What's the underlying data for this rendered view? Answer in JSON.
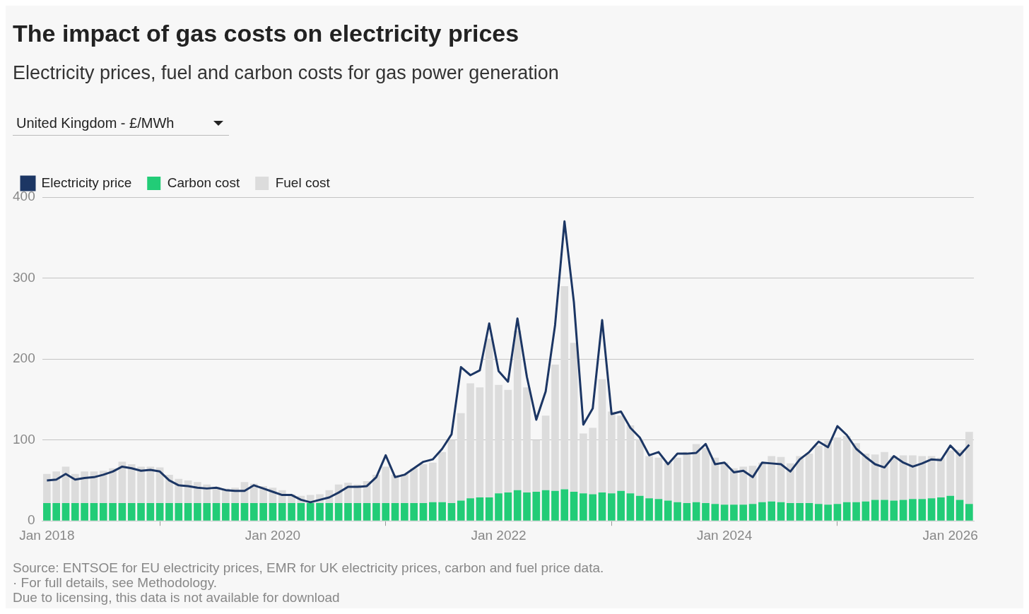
{
  "chart_data": {
    "type": "bar",
    "title": "The impact of gas costs on electricity prices",
    "subtitle": "Electricity prices, fuel and carbon costs for gas power generation",
    "annotations": [
      "United Kingdom - £/MWh",
      "Source: ENTSOE for EU electricity prices, EMR for UK electricity prices, carbon and fuel price data.",
      "· For full details, see Methodology.",
      "Due to licensing, this data is not available for download"
    ],
    "stacked": true,
    "legend": "top left",
    "grid": "y",
    "x": [
      "2018-01",
      "2018-02",
      "2018-03",
      "2018-04",
      "2018-05",
      "2018-06",
      "2018-07",
      "2018-08",
      "2018-09",
      "2018-10",
      "2018-11",
      "2018-12",
      "2019-01",
      "2019-02",
      "2019-03",
      "2019-04",
      "2019-05",
      "2019-06",
      "2019-07",
      "2019-08",
      "2019-09",
      "2019-10",
      "2019-11",
      "2019-12",
      "2020-01",
      "2020-02",
      "2020-03",
      "2020-04",
      "2020-05",
      "2020-06",
      "2020-07",
      "2020-08",
      "2020-09",
      "2020-10",
      "2020-11",
      "2020-12",
      "2021-01",
      "2021-02",
      "2021-03",
      "2021-04",
      "2021-05",
      "2021-06",
      "2021-07",
      "2021-08",
      "2021-09",
      "2021-10",
      "2021-11",
      "2021-12",
      "2022-01",
      "2022-02",
      "2022-03",
      "2022-04",
      "2022-05",
      "2022-06",
      "2022-07",
      "2022-08",
      "2022-09",
      "2022-10",
      "2022-11",
      "2022-12",
      "2023-01",
      "2023-02",
      "2023-03",
      "2023-04",
      "2023-05",
      "2023-06",
      "2023-07",
      "2023-08",
      "2023-09",
      "2023-10",
      "2023-11",
      "2023-12",
      "2024-01",
      "2024-02",
      "2024-03",
      "2024-04",
      "2024-05",
      "2024-06",
      "2024-07",
      "2024-08",
      "2024-09",
      "2024-10",
      "2024-11",
      "2024-12",
      "2025-01",
      "2025-02",
      "2025-03",
      "2025-04",
      "2025-05",
      "2025-06",
      "2025-07",
      "2025-08",
      "2025-09",
      "2025-10",
      "2025-11",
      "2025-12",
      "2026-01",
      "2026-02",
      "2026-03"
    ],
    "xlim": [
      "2017-12-16",
      "2026-03-16"
    ],
    "xticks": [
      {
        "value": "2018-01",
        "label": "Jan 2018"
      },
      {
        "value": "2020-01",
        "label": "Jan 2020"
      },
      {
        "value": "2022-01",
        "label": "Jan 2022"
      },
      {
        "value": "2024-01",
        "label": "Jan 2024"
      },
      {
        "value": "2026-01",
        "label": "Jan 2026"
      }
    ],
    "ylim": [
      0,
      400
    ],
    "yticks": [
      0,
      100,
      200,
      300,
      400
    ],
    "series": [
      {
        "name": "Electricity price",
        "type": "line",
        "color": "#1c3664",
        "values": [
          50,
          51,
          58,
          51,
          53,
          54,
          57,
          61,
          67,
          65,
          62,
          63,
          61,
          50,
          44,
          43,
          41,
          40,
          41,
          38,
          37,
          37,
          44,
          40,
          36,
          32,
          32,
          26,
          23,
          26,
          29,
          35,
          42,
          42,
          43,
          54,
          81,
          54,
          57,
          65,
          73,
          76,
          89,
          107,
          190,
          180,
          186,
          244,
          185,
          172,
          250,
          178,
          125,
          160,
          242,
          370,
          270,
          119,
          139,
          248,
          132,
          135,
          115,
          103,
          81,
          85,
          70,
          83,
          83,
          84,
          95,
          70,
          72,
          60,
          62,
          54,
          72,
          71,
          70,
          61,
          76,
          85,
          98,
          91,
          117,
          106,
          89,
          79,
          70,
          66,
          80,
          72,
          67,
          71,
          76,
          75,
          93,
          81,
          94
        ]
      },
      {
        "name": "Carbon cost",
        "color": "#22cc77",
        "values": [
          22,
          22,
          22,
          22,
          22,
          22,
          22,
          22,
          22,
          22,
          22,
          22,
          22,
          22,
          22,
          22,
          22,
          22,
          22,
          22,
          22,
          22,
          22,
          22,
          22,
          22,
          22,
          22,
          22,
          22,
          22,
          22,
          22,
          22,
          22,
          22,
          22,
          22,
          22,
          22,
          22,
          23,
          23,
          22,
          25,
          28,
          29,
          29,
          34,
          35,
          38,
          35,
          36,
          38,
          37,
          39,
          36,
          34,
          33,
          35,
          34,
          37,
          34,
          31,
          28,
          27,
          25,
          23,
          22,
          23,
          22,
          21,
          20,
          20,
          20,
          21,
          23,
          24,
          23,
          22,
          22,
          22,
          21,
          20,
          21,
          23,
          23,
          24,
          26,
          26,
          25,
          26,
          27,
          27,
          28,
          29,
          31,
          26,
          21
        ]
      },
      {
        "name": "Fuel cost",
        "color": "#dcdcdc",
        "values": [
          36,
          39,
          45,
          36,
          39,
          39,
          40,
          43,
          51,
          48,
          45,
          45,
          44,
          35,
          30,
          28,
          26,
          23,
          20,
          18,
          19,
          26,
          24,
          21,
          19,
          16,
          11,
          9,
          10,
          11,
          16,
          23,
          25,
          23,
          27,
          35,
          45,
          35,
          36,
          43,
          48,
          49,
          62,
          78,
          108,
          142,
          136,
          196,
          134,
          127,
          197,
          130,
          64,
          92,
          156,
          251,
          184,
          74,
          82,
          140,
          101,
          93,
          84,
          70,
          52,
          51,
          47,
          55,
          63,
          72,
          68,
          57,
          52,
          45,
          47,
          47,
          49,
          56,
          56,
          49,
          58,
          61,
          72,
          79,
          82,
          82,
          73,
          59,
          56,
          59,
          55,
          55,
          54,
          53,
          52,
          49,
          56,
          62,
          89
        ]
      }
    ]
  }
}
